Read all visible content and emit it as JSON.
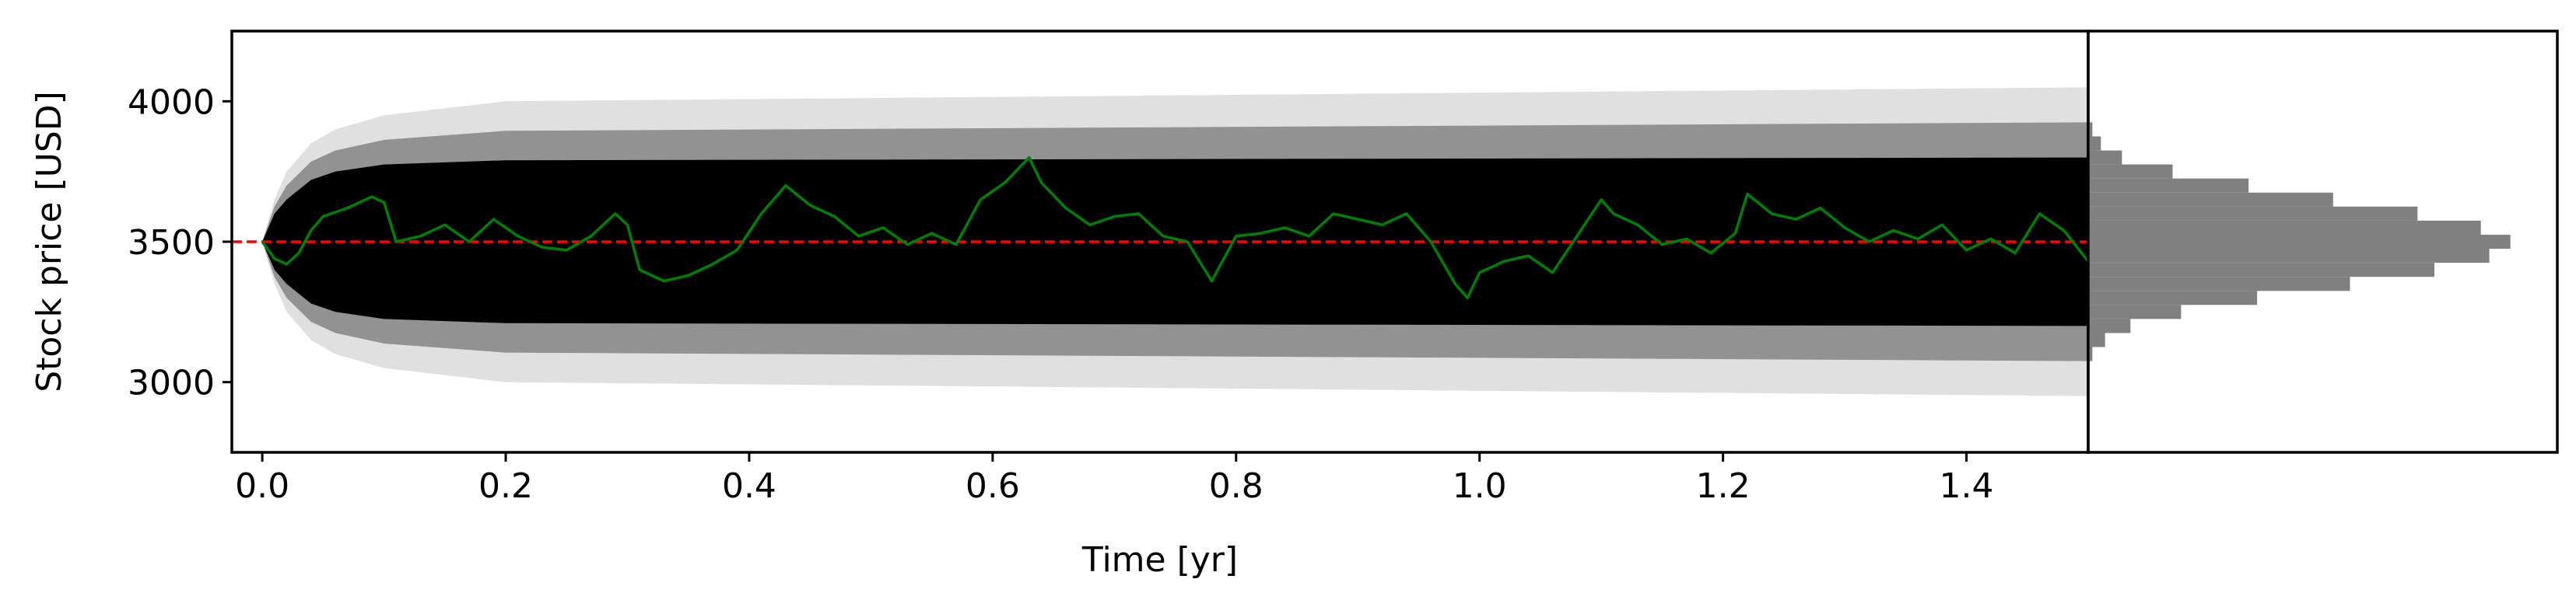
{
  "chart_data": [
    {
      "type": "line",
      "title": "",
      "xlabel": "Time [yr]",
      "ylabel": "Stock price [USD]",
      "xlim": [
        -0.025,
        1.5
      ],
      "ylim": [
        2750,
        4250
      ],
      "xticks": [
        0.0,
        0.2,
        0.4,
        0.6,
        0.8,
        1.0,
        1.2,
        1.4
      ],
      "xtick_labels": [
        "0.0",
        "0.2",
        "0.4",
        "0.6",
        "0.8",
        "1.0",
        "1.2",
        "1.4"
      ],
      "yticks": [
        3000,
        3500,
        4000
      ],
      "ytick_labels": [
        "3000",
        "3500",
        "4000"
      ],
      "grid": false,
      "legend": "none",
      "reference_line": {
        "y": 3500,
        "style": "dashed",
        "color": "#ff0000"
      },
      "simulation_band": {
        "color": "#000000",
        "description_x": [
          0.0,
          0.01,
          0.02,
          0.04,
          0.06,
          0.1,
          0.2,
          1.5
        ],
        "dense_lower": [
          3500,
          3400,
          3350,
          3280,
          3250,
          3225,
          3210,
          3200
        ],
        "dense_upper": [
          3500,
          3600,
          3650,
          3720,
          3750,
          3775,
          3790,
          3800
        ],
        "faint_lower": [
          3500,
          3350,
          3250,
          3150,
          3100,
          3050,
          3000,
          2950
        ],
        "faint_upper": [
          3500,
          3650,
          3750,
          3850,
          3900,
          3950,
          4000,
          4050
        ]
      },
      "series": [
        {
          "color": "#008000",
          "x": [
            0.0,
            0.01,
            0.02,
            0.03,
            0.04,
            0.05,
            0.07,
            0.09,
            0.1,
            0.11,
            0.13,
            0.15,
            0.17,
            0.19,
            0.21,
            0.23,
            0.25,
            0.27,
            0.29,
            0.3,
            0.31,
            0.33,
            0.35,
            0.37,
            0.39,
            0.41,
            0.43,
            0.45,
            0.47,
            0.49,
            0.51,
            0.53,
            0.55,
            0.57,
            0.59,
            0.61,
            0.63,
            0.64,
            0.66,
            0.68,
            0.7,
            0.72,
            0.74,
            0.76,
            0.78,
            0.8,
            0.82,
            0.84,
            0.86,
            0.88,
            0.9,
            0.92,
            0.94,
            0.96,
            0.98,
            0.99,
            1.0,
            1.02,
            1.04,
            1.06,
            1.08,
            1.1,
            1.11,
            1.13,
            1.15,
            1.17,
            1.19,
            1.21,
            1.22,
            1.24,
            1.26,
            1.28,
            1.3,
            1.32,
            1.34,
            1.36,
            1.38,
            1.4,
            1.42,
            1.44,
            1.46,
            1.48,
            1.5
          ],
          "y": [
            3500,
            3440,
            3420,
            3460,
            3540,
            3590,
            3620,
            3660,
            3640,
            3500,
            3520,
            3560,
            3500,
            3580,
            3520,
            3480,
            3470,
            3520,
            3600,
            3560,
            3400,
            3360,
            3380,
            3420,
            3470,
            3600,
            3700,
            3630,
            3590,
            3520,
            3550,
            3490,
            3530,
            3490,
            3650,
            3710,
            3800,
            3710,
            3620,
            3560,
            3590,
            3600,
            3520,
            3500,
            3360,
            3520,
            3530,
            3550,
            3520,
            3600,
            3580,
            3560,
            3600,
            3500,
            3350,
            3300,
            3390,
            3430,
            3450,
            3390,
            3520,
            3650,
            3600,
            3560,
            3490,
            3510,
            3460,
            3530,
            3670,
            3600,
            3580,
            3620,
            3550,
            3500,
            3540,
            3510,
            3560,
            3470,
            3510,
            3460,
            3600,
            3540,
            3430
          ]
        }
      ]
    },
    {
      "type": "bar",
      "orientation": "horizontal",
      "description": "Histogram of final simulated stock prices",
      "color": "#808080",
      "bin_centers": [
        3100,
        3150,
        3200,
        3250,
        3300,
        3350,
        3400,
        3450,
        3500,
        3550,
        3600,
        3650,
        3700,
        3750,
        3800,
        3850,
        3900
      ],
      "frequency_relative": [
        0.01,
        0.04,
        0.1,
        0.22,
        0.4,
        0.62,
        0.82,
        0.95,
        1.0,
        0.93,
        0.78,
        0.58,
        0.38,
        0.2,
        0.08,
        0.03,
        0.01
      ],
      "ylim": [
        2750,
        4250
      ]
    }
  ]
}
